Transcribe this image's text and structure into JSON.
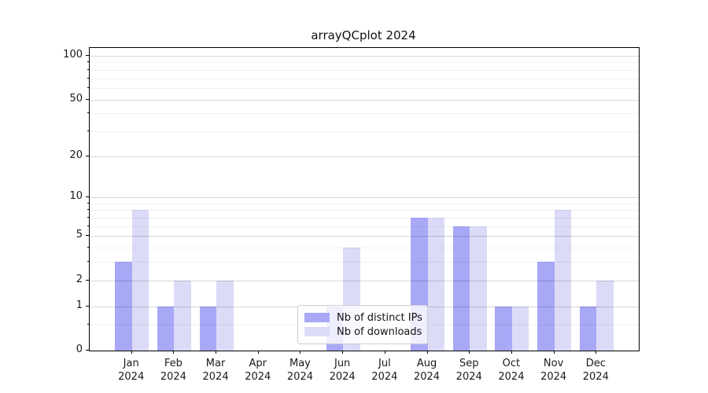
{
  "chart_data": {
    "type": "bar",
    "title": "arrayQCplot 2024",
    "categories": [
      "Jan",
      "Feb",
      "Mar",
      "Apr",
      "May",
      "Jun",
      "Jul",
      "Aug",
      "Sep",
      "Oct",
      "Nov",
      "Dec"
    ],
    "year_label": "2024",
    "series": [
      {
        "name": "Nb of distinct IPs",
        "color": "#a8a8f7",
        "values": [
          3,
          1,
          1,
          0,
          0,
          1,
          0,
          7,
          6,
          1,
          3,
          1
        ]
      },
      {
        "name": "Nb of downloads",
        "color": "#dbdbf8",
        "values": [
          8,
          2,
          2,
          0,
          0,
          4,
          0,
          7,
          6,
          1,
          8,
          2
        ]
      }
    ],
    "xlabel": "",
    "ylabel": "",
    "y_scale": "log10(1+x)",
    "y_ticks": [
      0,
      1,
      2,
      5,
      10,
      20,
      50,
      100
    ],
    "y_minor_ticks": [
      0.5,
      3,
      4,
      6,
      7,
      8,
      9,
      30,
      40,
      60,
      70,
      80,
      90
    ],
    "ylim": [
      0,
      113
    ],
    "grid": "on",
    "legend_position": "lower-center"
  }
}
